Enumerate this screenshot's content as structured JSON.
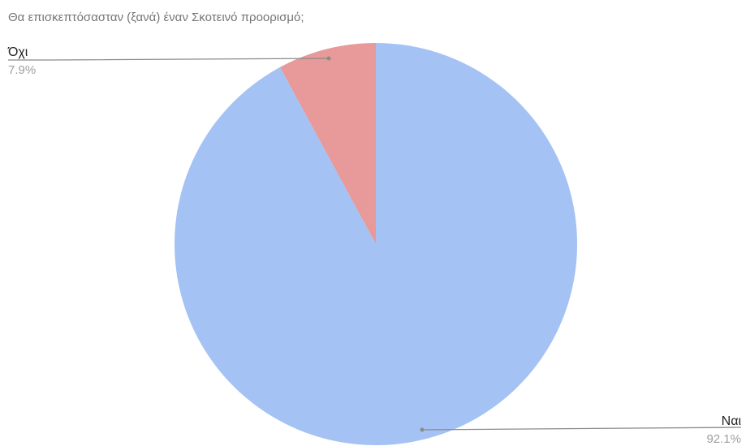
{
  "chart_data": {
    "type": "pie",
    "title": "Θα επισκεπτόσασταν (ξανά) έναν Σκοτεινό προορισμό;",
    "slices": [
      {
        "label": "Όχι",
        "value": 7.9,
        "value_label": "7.9%",
        "color": "#e89999"
      },
      {
        "label": "Ναι",
        "value": 92.1,
        "value_label": "92.1%",
        "color": "#a4c2f4"
      }
    ],
    "start_angle_deg": 0,
    "direction": "counterclockwise",
    "legend": "none",
    "leader_line_color": "#8a8a8a"
  }
}
